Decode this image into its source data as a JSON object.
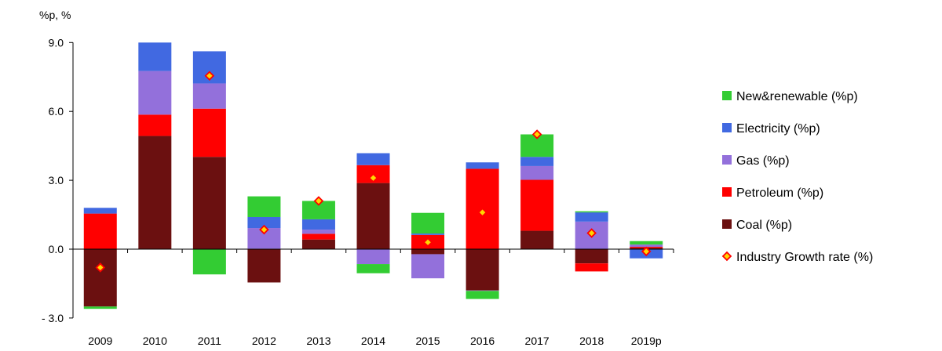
{
  "chart_data": {
    "type": "bar",
    "stacked": true,
    "unit_label": "%p, %",
    "categories": [
      "2009",
      "2010",
      "2011",
      "2012",
      "2013",
      "2014",
      "2015",
      "2016",
      "2017",
      "2018",
      "2019p"
    ],
    "y_tick_labels": [
      "9.0",
      "6.0",
      "3.0",
      "0.0",
      "- 3.0"
    ],
    "y_ticks": [
      9,
      6,
      3,
      0,
      -3
    ],
    "ylim": [
      -3,
      9
    ],
    "grid": false,
    "legend_position": "right",
    "series": [
      {
        "name": "Coal (%p)",
        "color": "#6b1010",
        "values": [
          -2.5,
          4.93,
          4.02,
          -1.45,
          0.42,
          2.88,
          -0.22,
          -1.8,
          0.8,
          -0.62,
          0.05
        ]
      },
      {
        "name": "Petroleum (%p)",
        "color": "#ff0000",
        "values": [
          1.55,
          0.93,
          2.1,
          0.02,
          0.25,
          0.78,
          0.62,
          3.5,
          2.22,
          -0.35,
          0.05
        ]
      },
      {
        "name": "Gas (%p)",
        "color": "#9370db",
        "values": [
          0.0,
          1.9,
          1.1,
          0.9,
          0.18,
          -0.65,
          -1.05,
          -0.02,
          0.6,
          1.2,
          0.1
        ]
      },
      {
        "name": "Electricity (%p)",
        "color": "#4169e1",
        "values": [
          0.25,
          1.24,
          1.4,
          0.48,
          0.45,
          0.52,
          0.06,
          0.28,
          0.4,
          0.4,
          -0.4
        ]
      },
      {
        "name": "New&renewable (%p)",
        "color": "#33cc33",
        "values": [
          -0.1,
          0.0,
          -1.1,
          0.9,
          0.8,
          -0.4,
          0.9,
          -0.35,
          0.98,
          0.05,
          0.15
        ]
      }
    ],
    "line_series": {
      "name": "Industry Growth rate (%)",
      "marker_fill": "#ffd700",
      "marker_edge": "#ff0000",
      "values": [
        -0.8,
        null,
        7.55,
        0.85,
        2.1,
        3.1,
        0.3,
        1.6,
        5.0,
        0.7,
        -0.1
      ]
    },
    "legend_order": [
      "New&renewable (%p)",
      "Electricity (%p)",
      "Gas (%p)",
      "Petroleum (%p)",
      "Coal (%p)",
      "Industry Growth rate (%)"
    ]
  }
}
